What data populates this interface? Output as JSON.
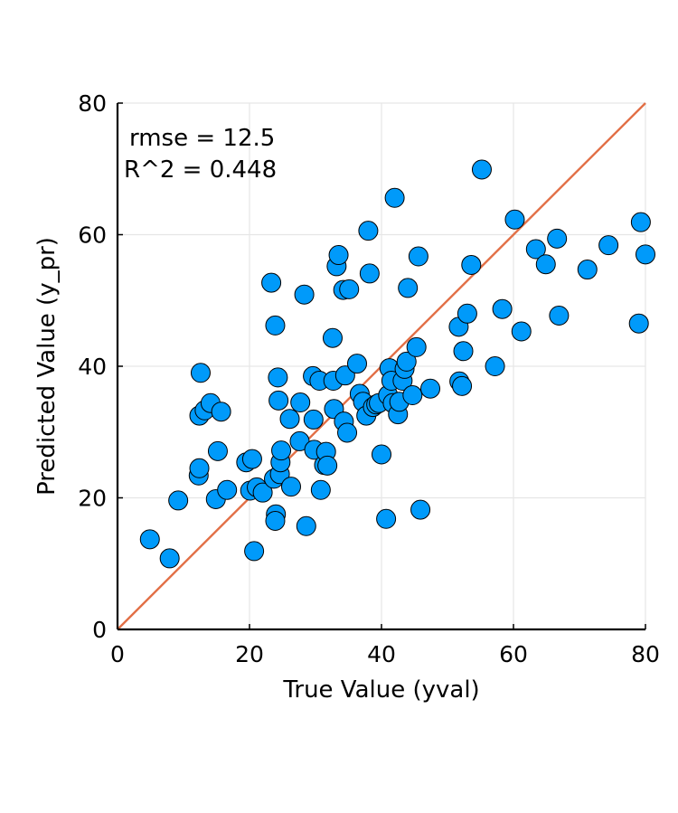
{
  "chart_data": {
    "type": "scatter",
    "title": "",
    "xlabel": "True Value (yval)",
    "ylabel": "Predicted Value (y_pr)",
    "xlim": [
      0,
      80
    ],
    "ylim": [
      0,
      80
    ],
    "xticks": [
      "0",
      "20",
      "40",
      "60",
      "80"
    ],
    "yticks": [
      "0",
      "20",
      "40",
      "60",
      "80"
    ],
    "grid": true,
    "legend": "none",
    "annotations": {
      "rmse": "rmse = 12.5",
      "r2": "R^2 = 0.448"
    },
    "colors": {
      "points": "#009AFA",
      "point_edge": "#000000",
      "reference_line": "#E26F46",
      "grid": "#E6E6E6"
    },
    "reference_line": {
      "from": [
        0,
        0
      ],
      "to": [
        80,
        80
      ]
    },
    "points": [
      [
        4.9,
        13.7
      ],
      [
        7.9,
        10.8
      ],
      [
        9.2,
        19.6
      ],
      [
        12.3,
        23.4
      ],
      [
        12.4,
        24.5
      ],
      [
        12.6,
        39.0
      ],
      [
        12.4,
        32.5
      ],
      [
        13.2,
        33.3
      ],
      [
        14.1,
        34.4
      ],
      [
        14.9,
        19.8
      ],
      [
        15.2,
        27.1
      ],
      [
        15.7,
        33.1
      ],
      [
        16.6,
        21.2
      ],
      [
        19.5,
        25.4
      ],
      [
        20.1,
        21.1
      ],
      [
        20.4,
        25.9
      ],
      [
        20.7,
        11.9
      ],
      [
        21.1,
        21.6
      ],
      [
        22.0,
        20.8
      ],
      [
        23.3,
        52.7
      ],
      [
        23.7,
        22.9
      ],
      [
        23.9,
        46.2
      ],
      [
        24.0,
        17.5
      ],
      [
        23.9,
        16.5
      ],
      [
        24.3,
        38.3
      ],
      [
        24.4,
        34.8
      ],
      [
        24.6,
        23.6
      ],
      [
        24.7,
        25.4
      ],
      [
        24.8,
        27.2
      ],
      [
        26.1,
        32.0
      ],
      [
        26.3,
        21.7
      ],
      [
        27.6,
        28.6
      ],
      [
        27.7,
        34.5
      ],
      [
        28.3,
        50.9
      ],
      [
        28.6,
        15.7
      ],
      [
        29.6,
        38.5
      ],
      [
        29.7,
        31.9
      ],
      [
        29.8,
        27.3
      ],
      [
        30.6,
        37.8
      ],
      [
        30.8,
        21.2
      ],
      [
        31.3,
        25.0
      ],
      [
        31.6,
        27.0
      ],
      [
        31.8,
        24.9
      ],
      [
        32.6,
        44.3
      ],
      [
        32.7,
        37.8
      ],
      [
        32.8,
        33.5
      ],
      [
        33.2,
        55.2
      ],
      [
        33.5,
        56.9
      ],
      [
        34.2,
        51.6
      ],
      [
        34.3,
        31.6
      ],
      [
        34.5,
        38.6
      ],
      [
        34.8,
        29.9
      ],
      [
        35.1,
        51.7
      ],
      [
        36.3,
        40.4
      ],
      [
        36.7,
        35.8
      ],
      [
        37.2,
        34.6
      ],
      [
        37.7,
        32.5
      ],
      [
        38.0,
        60.6
      ],
      [
        38.2,
        54.1
      ],
      [
        38.7,
        33.8
      ],
      [
        39.2,
        34.2
      ],
      [
        39.6,
        34.4
      ],
      [
        40.0,
        26.6
      ],
      [
        40.7,
        16.8
      ],
      [
        41.0,
        35.6
      ],
      [
        41.2,
        39.7
      ],
      [
        41.5,
        37.8
      ],
      [
        41.7,
        34.4
      ],
      [
        42.0,
        65.6
      ],
      [
        42.5,
        32.7
      ],
      [
        42.7,
        34.6
      ],
      [
        43.2,
        37.8
      ],
      [
        43.5,
        39.6
      ],
      [
        43.8,
        40.7
      ],
      [
        44.0,
        51.9
      ],
      [
        44.7,
        35.6
      ],
      [
        45.3,
        42.9
      ],
      [
        45.6,
        56.7
      ],
      [
        45.9,
        18.2
      ],
      [
        47.4,
        36.6
      ],
      [
        51.7,
        46.0
      ],
      [
        51.8,
        37.7
      ],
      [
        52.2,
        37.0
      ],
      [
        52.4,
        42.3
      ],
      [
        53.0,
        48.0
      ],
      [
        53.6,
        55.4
      ],
      [
        55.2,
        69.9
      ],
      [
        57.2,
        40.0
      ],
      [
        58.3,
        48.7
      ],
      [
        60.2,
        62.3
      ],
      [
        61.2,
        45.3
      ],
      [
        63.4,
        57.8
      ],
      [
        64.9,
        55.5
      ],
      [
        66.6,
        59.4
      ],
      [
        66.9,
        47.7
      ],
      [
        71.2,
        54.7
      ],
      [
        74.4,
        58.4
      ],
      [
        79.0,
        46.5
      ],
      [
        79.3,
        61.9
      ],
      [
        80.0,
        57.0
      ]
    ]
  }
}
